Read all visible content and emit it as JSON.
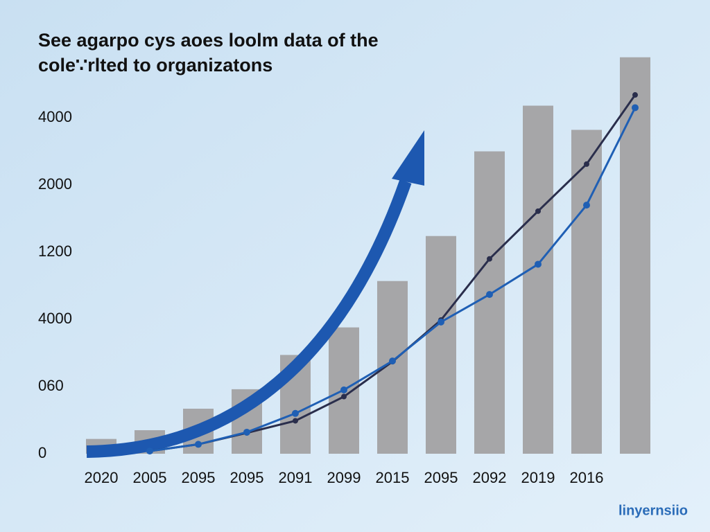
{
  "chart_data": {
    "type": "bar_line",
    "title": [
      "See agarpo cys aoes loolm data of the",
      "cole∵rlted to organizatons"
    ],
    "watermark": "linyernsiio",
    "categories": [
      "2020",
      "2005",
      "2095",
      "2095",
      "2091",
      "2099",
      "2015",
      "2095",
      "2092",
      "2019",
      "2016",
      null
    ],
    "values": [
      0.22,
      0.35,
      0.67,
      0.96,
      1.47,
      1.88,
      2.57,
      3.24,
      4.5,
      5.18,
      4.82,
      5.9
    ],
    "color": "#a6a6a8",
    "series": [
      {
        "color": "#2a2e4c",
        "values": [
          null,
          0.04,
          0.14,
          0.31,
          0.49,
          0.85,
          1.37,
          1.99,
          2.9,
          3.61,
          4.31,
          5.34
        ]
      },
      {
        "color": "#1f5fb4",
        "values": [
          null,
          0.04,
          0.14,
          0.32,
          0.6,
          0.95,
          1.38,
          1.96,
          2.37,
          2.82,
          3.7,
          5.15
        ]
      }
    ],
    "ylim": [
      0,
      6
    ],
    "yticks": [
      {
        "value": 0,
        "label": "0"
      },
      {
        "value": 1,
        "label": "060"
      },
      {
        "value": 2,
        "label": "4000"
      },
      {
        "value": 3,
        "label": "1200"
      },
      {
        "value": 4,
        "label": "2000"
      },
      {
        "value": 5,
        "label": "4000"
      }
    ],
    "grid": false
  }
}
